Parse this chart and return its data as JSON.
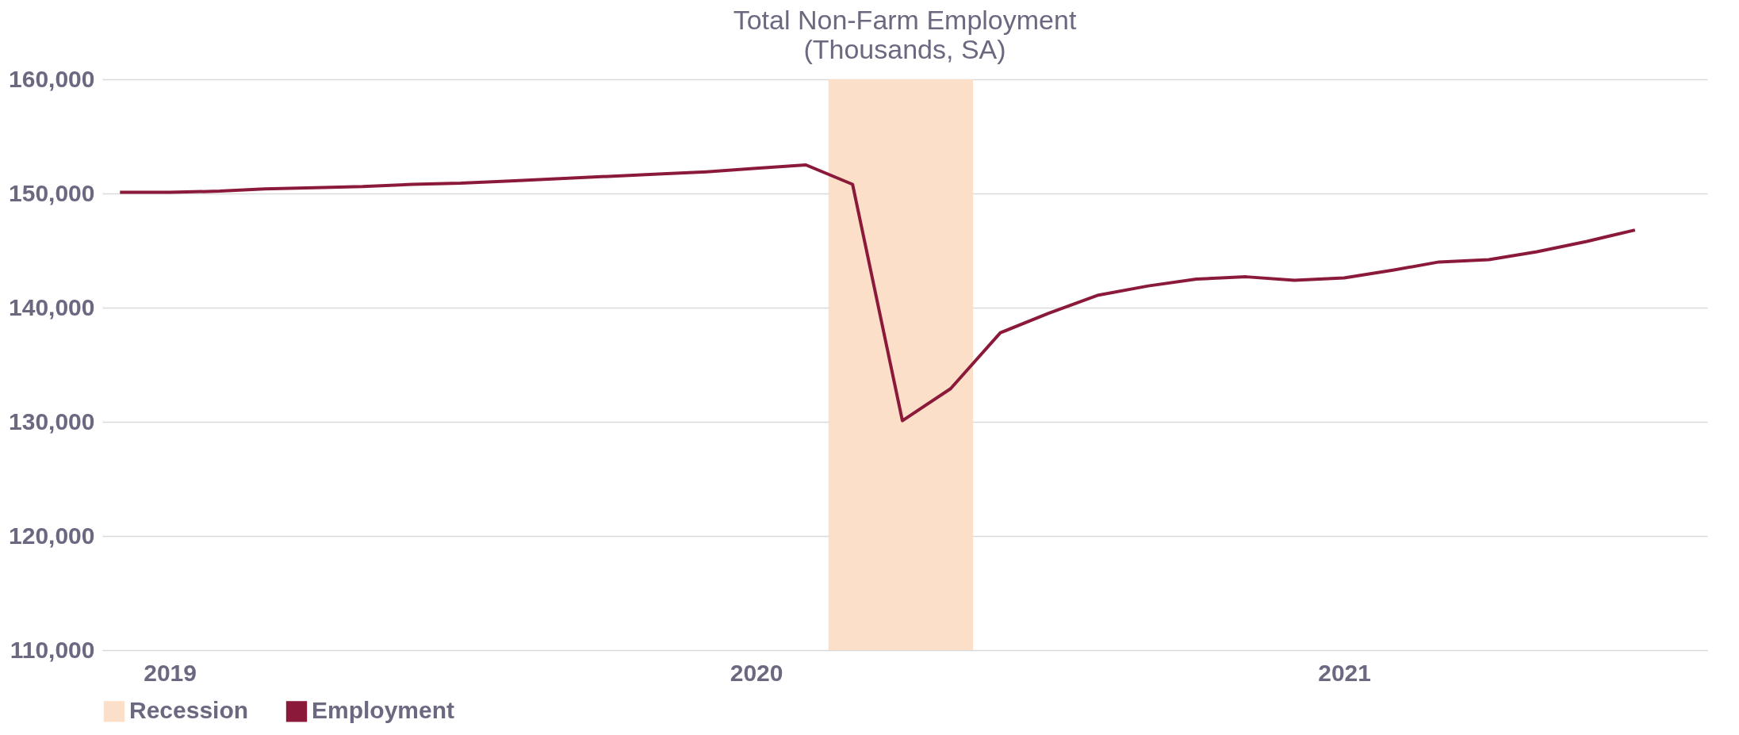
{
  "chart_data": {
    "type": "line",
    "title": "Total Non-Farm Employment",
    "subtitle": "(Thousands, SA)",
    "x": [
      "2018-12",
      "2019-01",
      "2019-02",
      "2019-03",
      "2019-04",
      "2019-05",
      "2019-06",
      "2019-07",
      "2019-08",
      "2019-09",
      "2019-10",
      "2019-11",
      "2019-12",
      "2020-01",
      "2020-02",
      "2020-03",
      "2020-04",
      "2020-05",
      "2020-06",
      "2020-07",
      "2020-08",
      "2020-09",
      "2020-10",
      "2020-11",
      "2020-12",
      "2021-01",
      "2021-02",
      "2021-03",
      "2021-04",
      "2021-05",
      "2021-06",
      "2021-07"
    ],
    "series": [
      {
        "name": "Employment",
        "color": "#8b1a3a",
        "values": [
          150100,
          150100,
          150200,
          150400,
          150500,
          150600,
          150800,
          150900,
          151100,
          151300,
          151500,
          151700,
          151900,
          152200,
          152500,
          150800,
          130100,
          132900,
          137800,
          139500,
          141100,
          141900,
          142500,
          142700,
          142400,
          142600,
          143300,
          144000,
          144200,
          144900,
          145800,
          146800
        ]
      }
    ],
    "bands": [
      {
        "axis": "x",
        "from": "2020-02-15",
        "to": "2020-05-15",
        "label": "Recession",
        "color": "#fbdfc9"
      }
    ],
    "xlim": [
      "2018-11-20",
      "2021-08-15"
    ],
    "xticks": [
      {
        "value": "2019-01-01",
        "label": "2019"
      },
      {
        "value": "2020-01-01",
        "label": "2020"
      },
      {
        "value": "2021-01-01",
        "label": "2021"
      }
    ],
    "ylim": [
      110000,
      160000
    ],
    "yticks": [
      {
        "value": 110000,
        "label": "110,000"
      },
      {
        "value": 120000,
        "label": "120,000"
      },
      {
        "value": 130000,
        "label": "130,000"
      },
      {
        "value": 140000,
        "label": "140,000"
      },
      {
        "value": 150000,
        "label": "150,000"
      },
      {
        "value": 160000,
        "label": "160,000"
      }
    ],
    "grid": "y",
    "legend": "bottom",
    "marker": "none",
    "line_style": "solid"
  }
}
